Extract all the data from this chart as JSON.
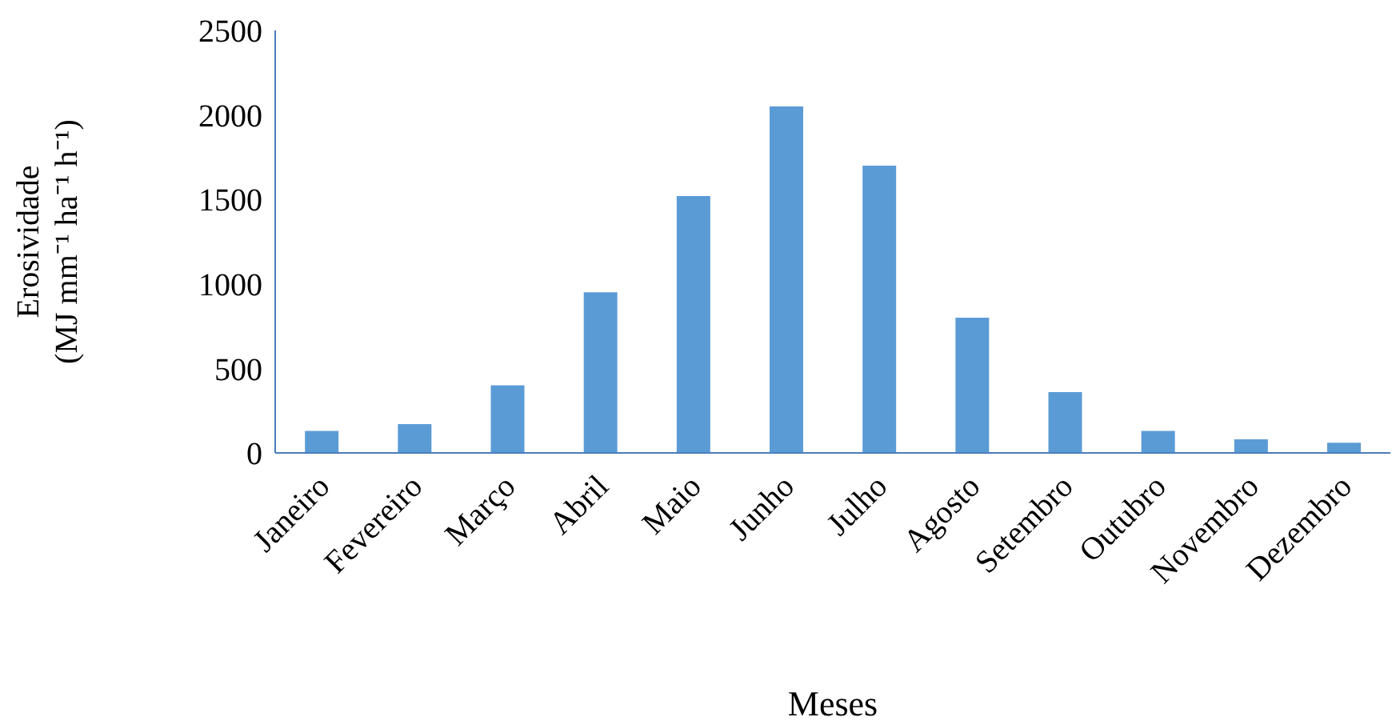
{
  "chart_data": {
    "type": "bar",
    "xlabel": "Meses",
    "ylabel": "Erosividade\n(MJ mm⁻¹ ha⁻¹ h⁻¹)",
    "categories": [
      "Janeiro",
      "Fevereiro",
      "Março",
      "Abril",
      "Maio",
      "Junho",
      "Julho",
      "Agosto",
      "Setembro",
      "Outubro",
      "Novembro",
      "Dezembro"
    ],
    "values": [
      130,
      170,
      400,
      950,
      1520,
      2050,
      1700,
      800,
      360,
      130,
      80,
      60
    ],
    "color": "#5b9bd5",
    "ylim": [
      0,
      2500
    ],
    "yticks": [
      0,
      500,
      1000,
      1500,
      2000,
      2500
    ],
    "grid": false
  }
}
